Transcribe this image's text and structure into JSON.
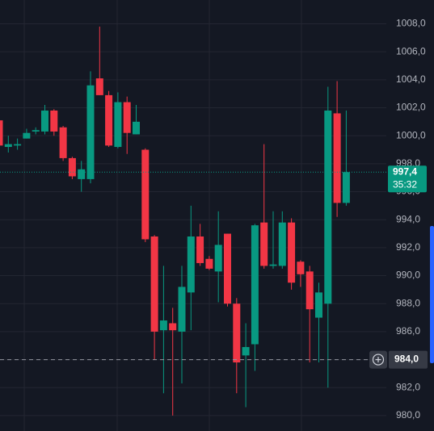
{
  "chart_data": {
    "type": "candlestick",
    "open": [
      1001.1,
      999.2,
      999.3,
      999.8,
      1000.3,
      1000.3,
      1001.8,
      1000.6,
      998.4,
      996.9,
      996.9,
      1004.1,
      1002.9,
      999.2,
      1002.4,
      1000.1,
      999.0,
      992.8,
      986.1,
      986.6,
      986.0,
      988.8,
      992.8,
      991.2,
      990.3,
      993.0,
      988.0,
      984.3,
      985.1,
      993.8,
      990.7,
      990.7,
      993.8,
      991.0,
      990.3,
      987.0,
      988.0,
      1001.6,
      995.2
    ],
    "high": [
      1001.2,
      1000.0,
      999.8,
      1000.5,
      1000.6,
      1002.2,
      1001.9,
      1000.7,
      998.5,
      998.2,
      1004.6,
      1007.8,
      1003.2,
      1003.1,
      1002.8,
      1002.2,
      999.1,
      992.9,
      990.7,
      987.7,
      990.7,
      995.0,
      993.7,
      991.4,
      994.6,
      993.0,
      988.4,
      986.6,
      993.7,
      999.4,
      994.6,
      994.6,
      994.1,
      991.1,
      990.7,
      989.5,
      1003.5,
      1003.9,
      1001.8
    ],
    "low": [
      999.0,
      998.8,
      999.0,
      999.8,
      1000.1,
      1000.1,
      1000.0,
      998.2,
      996.9,
      996.0,
      996.6,
      1002.9,
      999.2,
      999.1,
      998.7,
      1000.1,
      992.4,
      984.0,
      981.6,
      980.0,
      982.3,
      986.1,
      990.7,
      990.4,
      988.1,
      987.8,
      981.6,
      980.6,
      983.2,
      990.5,
      990.5,
      990.5,
      989.0,
      989.2,
      983.8,
      983.8,
      982.0,
      994.2,
      995.0
    ],
    "close": [
      999.3,
      999.4,
      999.4,
      1000.2,
      1000.4,
      1001.8,
      1000.3,
      998.4,
      997.1,
      997.6,
      1003.6,
      1002.9,
      999.3,
      1002.4,
      1000.2,
      1001.0,
      992.6,
      986.0,
      986.8,
      986.1,
      989.2,
      992.8,
      990.9,
      990.5,
      992.2,
      988.0,
      983.8,
      984.9,
      993.6,
      990.7,
      990.8,
      993.8,
      989.5,
      990.1,
      987.6,
      988.8,
      1001.8,
      995.2,
      997.4
    ],
    "up_color": "#089981",
    "down_color": "#f23645",
    "ylim": [
      978.9,
      1009.7
    ],
    "yticks": [
      {
        "value": 980,
        "label": "980,0"
      },
      {
        "value": 982,
        "label": "982,0"
      },
      {
        "value": 984,
        "label": "984,0"
      },
      {
        "value": 986,
        "label": "986,0"
      },
      {
        "value": 988,
        "label": "988,0"
      },
      {
        "value": 990,
        "label": "990,0"
      },
      {
        "value": 992,
        "label": "992,0"
      },
      {
        "value": 994,
        "label": "994,0"
      },
      {
        "value": 996,
        "label": "996,0"
      },
      {
        "value": 998,
        "label": "998,0"
      },
      {
        "value": 1000,
        "label": "1000,0"
      },
      {
        "value": 1002,
        "label": "1002,0"
      },
      {
        "value": 1004,
        "label": "1004,0"
      },
      {
        "value": 1006,
        "label": "1006,0"
      },
      {
        "value": 1008,
        "label": "1008,0"
      }
    ],
    "grid": true,
    "last_price": {
      "value": 997.4,
      "label": "997,4"
    },
    "countdown": "35:32",
    "crosshair": {
      "value": 984,
      "label": "984,0"
    }
  }
}
